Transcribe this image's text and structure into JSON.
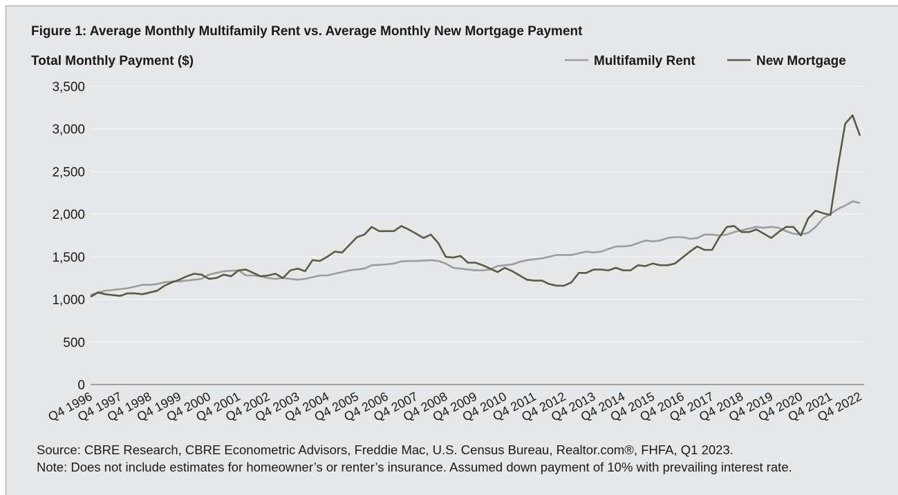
{
  "chart_data": {
    "type": "line",
    "title": "Figure 1: Average Monthly Multifamily Rent vs. Average Monthly New Mortgage Payment",
    "y_axis_label": "Total Monthly Payment ($)",
    "source": "Source: CBRE Research, CBRE Econometric Advisors, Freddie Mac, U.S. Census Bureau, Realtor.com®, FHFA, Q1 2023.",
    "note": "Note: Does not include estimates for homeowner’s or renter’s insurance. Assumed down payment of 10% with prevailing interest rate.",
    "categories": [
      "Q4 1996",
      null,
      null,
      null,
      "Q4 1997",
      null,
      null,
      null,
      "Q4 1998",
      null,
      null,
      null,
      "Q4 1999",
      null,
      null,
      null,
      "Q4 2000",
      null,
      null,
      null,
      "Q4 2001",
      null,
      null,
      null,
      "Q4 2002",
      null,
      null,
      null,
      "Q4 2003",
      null,
      null,
      null,
      "Q4 2004",
      null,
      null,
      null,
      "Q4 2005",
      null,
      null,
      null,
      "Q4 2006",
      null,
      null,
      null,
      "Q4 2007",
      null,
      null,
      null,
      "Q4 2008",
      null,
      null,
      null,
      "Q4 2009",
      null,
      null,
      null,
      "Q4 2010",
      null,
      null,
      null,
      "Q4 2011",
      null,
      null,
      null,
      "Q4 2012",
      null,
      null,
      null,
      "Q4 2013",
      null,
      null,
      null,
      "Q4 2014",
      null,
      null,
      null,
      "Q4 2015",
      null,
      null,
      null,
      "Q4 2016",
      null,
      null,
      null,
      "Q4 2017",
      null,
      null,
      null,
      "Q4 2018",
      null,
      null,
      null,
      "Q4 2019",
      null,
      null,
      null,
      "Q4 2020",
      null,
      null,
      null,
      "Q4 2021",
      null,
      null,
      null,
      "Q4 2022"
    ],
    "series": [
      {
        "name": "Multifamily Rent",
        "color": "#999d9d",
        "values": [
          1050,
          1080,
          1100,
          1110,
          1120,
          1130,
          1150,
          1170,
          1170,
          1180,
          1200,
          1210,
          1210,
          1220,
          1230,
          1240,
          1290,
          1310,
          1330,
          1335,
          1340,
          1280,
          1280,
          1270,
          1250,
          1240,
          1250,
          1240,
          1230,
          1240,
          1260,
          1280,
          1280,
          1300,
          1320,
          1340,
          1350,
          1360,
          1400,
          1405,
          1410,
          1420,
          1445,
          1450,
          1450,
          1455,
          1460,
          1450,
          1420,
          1370,
          1360,
          1350,
          1340,
          1340,
          1350,
          1390,
          1400,
          1410,
          1440,
          1460,
          1470,
          1480,
          1500,
          1520,
          1520,
          1520,
          1540,
          1560,
          1550,
          1560,
          1590,
          1620,
          1620,
          1630,
          1660,
          1690,
          1680,
          1690,
          1720,
          1730,
          1730,
          1710,
          1720,
          1760,
          1760,
          1750,
          1760,
          1790,
          1810,
          1830,
          1850,
          1840,
          1850,
          1840,
          1800,
          1770,
          1760,
          1780,
          1850,
          1950,
          2000,
          2060,
          2100,
          2150,
          2130
        ]
      },
      {
        "name": "New Mortgage",
        "color": "#5b5944",
        "values": [
          1030,
          1080,
          1060,
          1050,
          1040,
          1070,
          1070,
          1060,
          1080,
          1100,
          1160,
          1200,
          1230,
          1270,
          1300,
          1290,
          1240,
          1250,
          1290,
          1270,
          1340,
          1350,
          1310,
          1270,
          1280,
          1300,
          1250,
          1340,
          1360,
          1330,
          1460,
          1450,
          1500,
          1560,
          1550,
          1640,
          1730,
          1760,
          1850,
          1800,
          1800,
          1800,
          1860,
          1820,
          1770,
          1720,
          1760,
          1660,
          1500,
          1490,
          1510,
          1430,
          1430,
          1400,
          1360,
          1320,
          1370,
          1330,
          1280,
          1230,
          1220,
          1220,
          1180,
          1160,
          1160,
          1200,
          1310,
          1310,
          1350,
          1350,
          1340,
          1370,
          1340,
          1340,
          1400,
          1390,
          1420,
          1400,
          1400,
          1420,
          1490,
          1560,
          1620,
          1580,
          1580,
          1730,
          1850,
          1860,
          1790,
          1790,
          1820,
          1770,
          1720,
          1790,
          1850,
          1850,
          1750,
          1950,
          2040,
          2010,
          1990,
          2550,
          3060,
          3160,
          2920
        ]
      }
    ],
    "ylim": [
      0,
      3500
    ],
    "yticks": [
      0,
      500,
      {
        "value": 1000,
        "label": "1,000"
      },
      {
        "value": 1500,
        "label": "1,500"
      },
      {
        "value": 2000,
        "label": "2,000"
      },
      {
        "value": 2500,
        "label": "2,500"
      },
      {
        "value": 3000,
        "label": "3,000"
      },
      {
        "value": 3500,
        "label": "3,500"
      }
    ],
    "grid": true,
    "legend": "top-right"
  }
}
